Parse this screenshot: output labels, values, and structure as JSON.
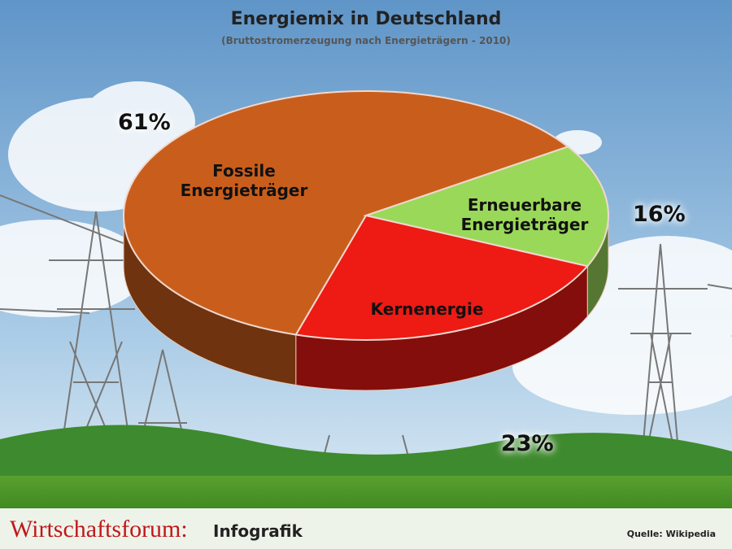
{
  "chart_data": {
    "type": "pie",
    "title": "Energiemix in Deutschland",
    "subtitle": "(Bruttostromerzeugung nach Energieträgern - 2010)",
    "categories": [
      "Fossile Energieträger",
      "Erneuerbare Energieträger",
      "Kernenergie"
    ],
    "values": [
      61,
      16,
      23
    ],
    "value_labels": [
      "61%",
      "16%",
      "23%"
    ],
    "colors": [
      "#c95e1c",
      "#9ad85a",
      "#ee1a14"
    ]
  },
  "footer": {
    "brand": "Wirtschaftsforum:",
    "kind": "Infografik",
    "source": "Quelle: Wikipedia"
  }
}
